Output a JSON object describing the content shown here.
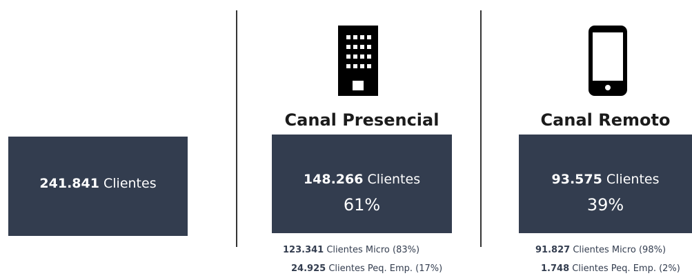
{
  "total": {
    "value": "241.841",
    "unit": "Clientes"
  },
  "channels": [
    {
      "title": "Canal Presencial",
      "value": "148.266",
      "unit": "Clientes",
      "percent": "61%",
      "breakdown": [
        {
          "value": "123.341",
          "label": "Clientes Micro (83%)"
        },
        {
          "value": "24.925",
          "label": "Clientes Peq. Emp. (17%)"
        }
      ]
    },
    {
      "title": "Canal Remoto",
      "value": "93.575",
      "unit": "Clientes",
      "percent": "39%",
      "breakdown": [
        {
          "value": "91.827",
          "label": "Clientes Micro (98%)"
        },
        {
          "value": "1.748",
          "label": "Clientes Peq. Emp. (2%)"
        }
      ]
    }
  ]
}
